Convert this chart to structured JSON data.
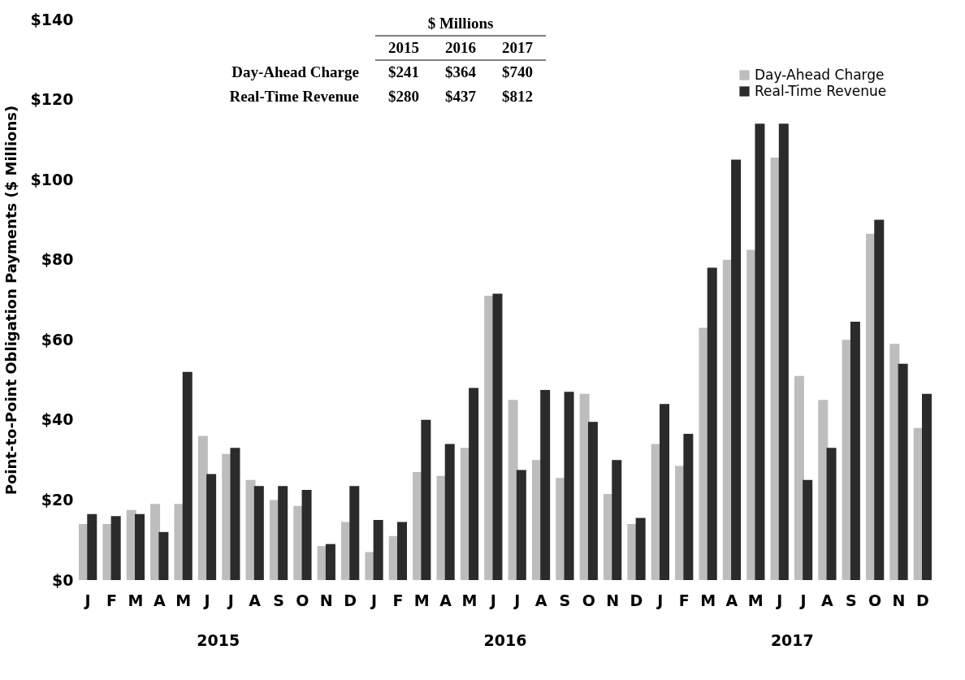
{
  "chart_data": {
    "type": "bar",
    "ylabel": "Point-to-Point Obligation Payments ($ Millions)",
    "categories": [
      "J",
      "F",
      "M",
      "A",
      "M",
      "J",
      "J",
      "A",
      "S",
      "O",
      "N",
      "D",
      "J",
      "F",
      "M",
      "A",
      "M",
      "J",
      "J",
      "A",
      "S",
      "O",
      "N",
      "D",
      "J",
      "F",
      "M",
      "A",
      "M",
      "J",
      "J",
      "A",
      "S",
      "O",
      "N",
      "D"
    ],
    "series": [
      {
        "name": "Day-Ahead Charge",
        "color": "#bdbdbd",
        "values": [
          14,
          14,
          17.5,
          19,
          19,
          36,
          31.5,
          25,
          20,
          18.5,
          8.5,
          14.5,
          7,
          11,
          27,
          26,
          33,
          71,
          45,
          30,
          25.5,
          46.5,
          21.5,
          14,
          34,
          28.5,
          63,
          80,
          82.5,
          105.5,
          51,
          45,
          60,
          86.5,
          59,
          38
        ]
      },
      {
        "name": "Real-Time Revenue",
        "color": "#2b2b2b",
        "values": [
          16.5,
          16,
          16.5,
          12,
          52,
          26.5,
          33,
          23.5,
          23.5,
          22.5,
          9,
          23.5,
          15,
          14.5,
          40,
          34,
          48,
          71.5,
          27.5,
          47.5,
          47,
          39.5,
          30,
          15.5,
          44,
          36.5,
          78,
          105,
          114,
          114,
          25,
          33,
          64.5,
          90,
          54,
          46.5
        ]
      }
    ],
    "ylim": [
      0,
      140
    ],
    "yticks": [
      {
        "value": 0,
        "label": "$0"
      },
      {
        "value": 20,
        "label": "$20"
      },
      {
        "value": 40,
        "label": "$40"
      },
      {
        "value": 60,
        "label": "$60"
      },
      {
        "value": 80,
        "label": "$80"
      },
      {
        "value": 100,
        "label": "$100"
      },
      {
        "value": 120,
        "label": "$120"
      },
      {
        "value": 140,
        "label": "$140"
      }
    ],
    "grid": false,
    "legend": "top right",
    "annotations": [
      "2015",
      "2016",
      "2017",
      "$ Millions",
      "2015",
      "2016",
      "2017",
      "Day-Ahead Charge",
      "$241",
      "$364",
      "$740",
      "Real-Time Revenue",
      "$280",
      "$437",
      "$812"
    ]
  }
}
